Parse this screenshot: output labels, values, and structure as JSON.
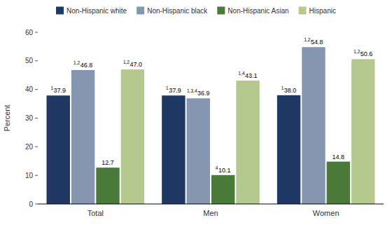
{
  "chart_data": {
    "type": "bar",
    "categories": [
      "Total",
      "Men",
      "Women"
    ],
    "ylabel": "Percent",
    "ylim": [
      0,
      60
    ],
    "yticks": [
      0,
      10,
      20,
      30,
      40,
      50,
      60
    ],
    "grid": false,
    "legend": "top",
    "data_labels": true,
    "series": [
      {
        "name": "Non-Hispanic white",
        "color": "#1f3864",
        "values": [
          37.9,
          37.9,
          38.0
        ],
        "value_labels": [
          "37.9",
          "37.9",
          "38.0"
        ],
        "annotations": [
          "1",
          "1",
          "1"
        ]
      },
      {
        "name": "Non-Hispanic black",
        "color": "#8496b0",
        "values": [
          46.8,
          36.9,
          54.8
        ],
        "value_labels": [
          "46.8",
          "36.9",
          "54.8"
        ],
        "annotations": [
          "1,2",
          "1,3,4",
          "1,2"
        ]
      },
      {
        "name": "Non-Hispanic Asian",
        "color": "#4a7a3a",
        "values": [
          12.7,
          10.1,
          14.8
        ],
        "value_labels": [
          "12.7",
          "10.1",
          "14.8"
        ],
        "annotations": [
          null,
          "4",
          null
        ]
      },
      {
        "name": "Hispanic",
        "color": "#b5c98e",
        "values": [
          47.0,
          43.1,
          50.6
        ],
        "value_labels": [
          "47.0",
          "43.1",
          "50.6"
        ],
        "annotations": [
          "1,2",
          "1,4",
          "1,2"
        ]
      }
    ]
  }
}
